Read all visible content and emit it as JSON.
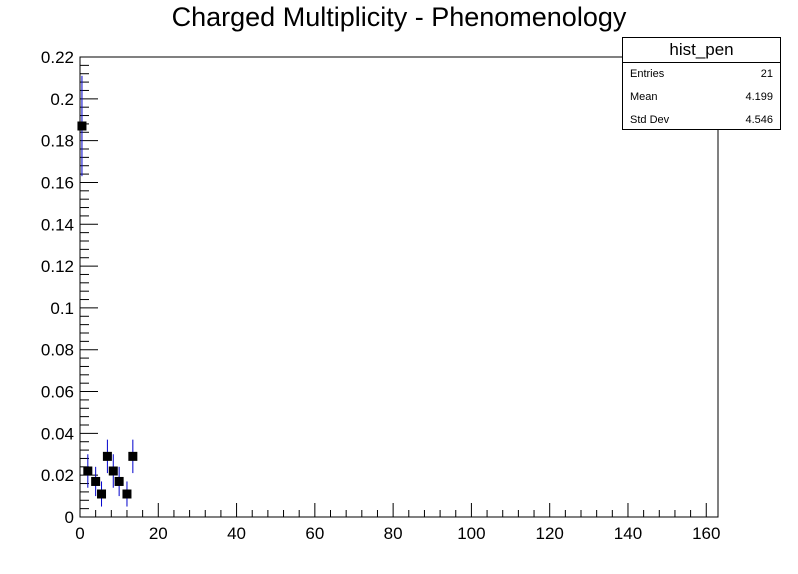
{
  "chart_data": {
    "type": "scatter",
    "title": "Charged Multiplicity - Phenomenology",
    "xlabel": "",
    "ylabel": "",
    "xlim": [
      0,
      163
    ],
    "ylim": [
      0,
      0.22
    ],
    "xticks": [
      0,
      20,
      40,
      60,
      80,
      100,
      120,
      140,
      160
    ],
    "yticks": [
      0,
      0.02,
      0.04,
      0.06,
      0.08,
      0.1,
      0.12,
      0.14,
      0.16,
      0.18,
      0.2,
      0.22
    ],
    "grid": false,
    "series": [
      {
        "marker": "square",
        "color": "#000000",
        "error_color": "#0000cc",
        "points": [
          {
            "x": 0.5,
            "y": 0.187,
            "err": 0.024
          },
          {
            "x": 2,
            "y": 0.022,
            "err": 0.008
          },
          {
            "x": 4,
            "y": 0.017,
            "err": 0.007
          },
          {
            "x": 5.5,
            "y": 0.011,
            "err": 0.006
          },
          {
            "x": 7,
            "y": 0.029,
            "err": 0.008
          },
          {
            "x": 8.5,
            "y": 0.022,
            "err": 0.008
          },
          {
            "x": 10,
            "y": 0.017,
            "err": 0.007
          },
          {
            "x": 12,
            "y": 0.011,
            "err": 0.006
          },
          {
            "x": 13.5,
            "y": 0.029,
            "err": 0.008
          }
        ]
      }
    ]
  },
  "stats": {
    "name": "hist_pen",
    "rows": [
      {
        "label": "Entries",
        "value": "21"
      },
      {
        "label": "Mean",
        "value": "4.199"
      },
      {
        "label": "Std Dev",
        "value": "4.546"
      }
    ]
  }
}
